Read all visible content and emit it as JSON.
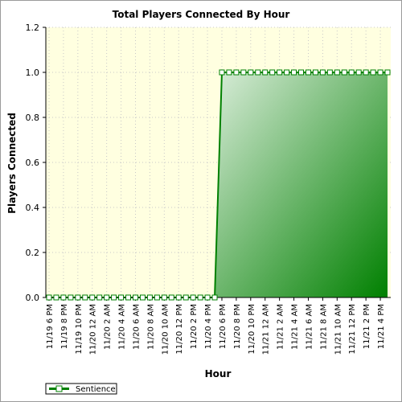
{
  "chart_data": {
    "type": "area",
    "title": "Total Players Connected By Hour",
    "xlabel": "Hour",
    "ylabel": "Players Connected",
    "ylim": [
      0,
      1.2
    ],
    "yticks": [
      "0.0",
      "0.2",
      "0.4",
      "0.6",
      "0.8",
      "1.0",
      "1.2"
    ],
    "xtick_labels": [
      "11/19 6 PM",
      "11/19 8 PM",
      "11/19 10 PM",
      "11/20 12 AM",
      "11/20 2 AM",
      "11/20 4 AM",
      "11/20 6 AM",
      "11/20 8 AM",
      "11/20 10 AM",
      "11/20 12 PM",
      "11/20 2 PM",
      "11/20 4 PM",
      "11/20 6 PM",
      "11/20 8 PM",
      "11/20 10 PM",
      "11/21 12 AM",
      "11/21 2 AM",
      "11/21 4 AM",
      "11/21 6 AM",
      "11/21 8 AM",
      "11/21 10 AM",
      "11/21 12 PM",
      "11/21 2 PM",
      "11/21 4 PM"
    ],
    "grid": true,
    "legend_position": "bottom-left",
    "series": [
      {
        "name": "Sentience",
        "color": "#008000",
        "values": [
          0,
          0,
          0,
          0,
          0,
          0,
          0,
          0,
          0,
          0,
          0,
          0,
          0,
          0,
          0,
          0,
          0,
          0,
          0,
          0,
          0,
          0,
          0,
          0,
          1,
          1,
          1,
          1,
          1,
          1,
          1,
          1,
          1,
          1,
          1,
          1,
          1,
          1,
          1,
          1,
          1,
          1,
          1,
          1,
          1,
          1,
          1,
          1
        ]
      }
    ],
    "plot_background": "#ffffe0",
    "area_gradient": [
      "#d8ecd8",
      "#008000"
    ]
  }
}
